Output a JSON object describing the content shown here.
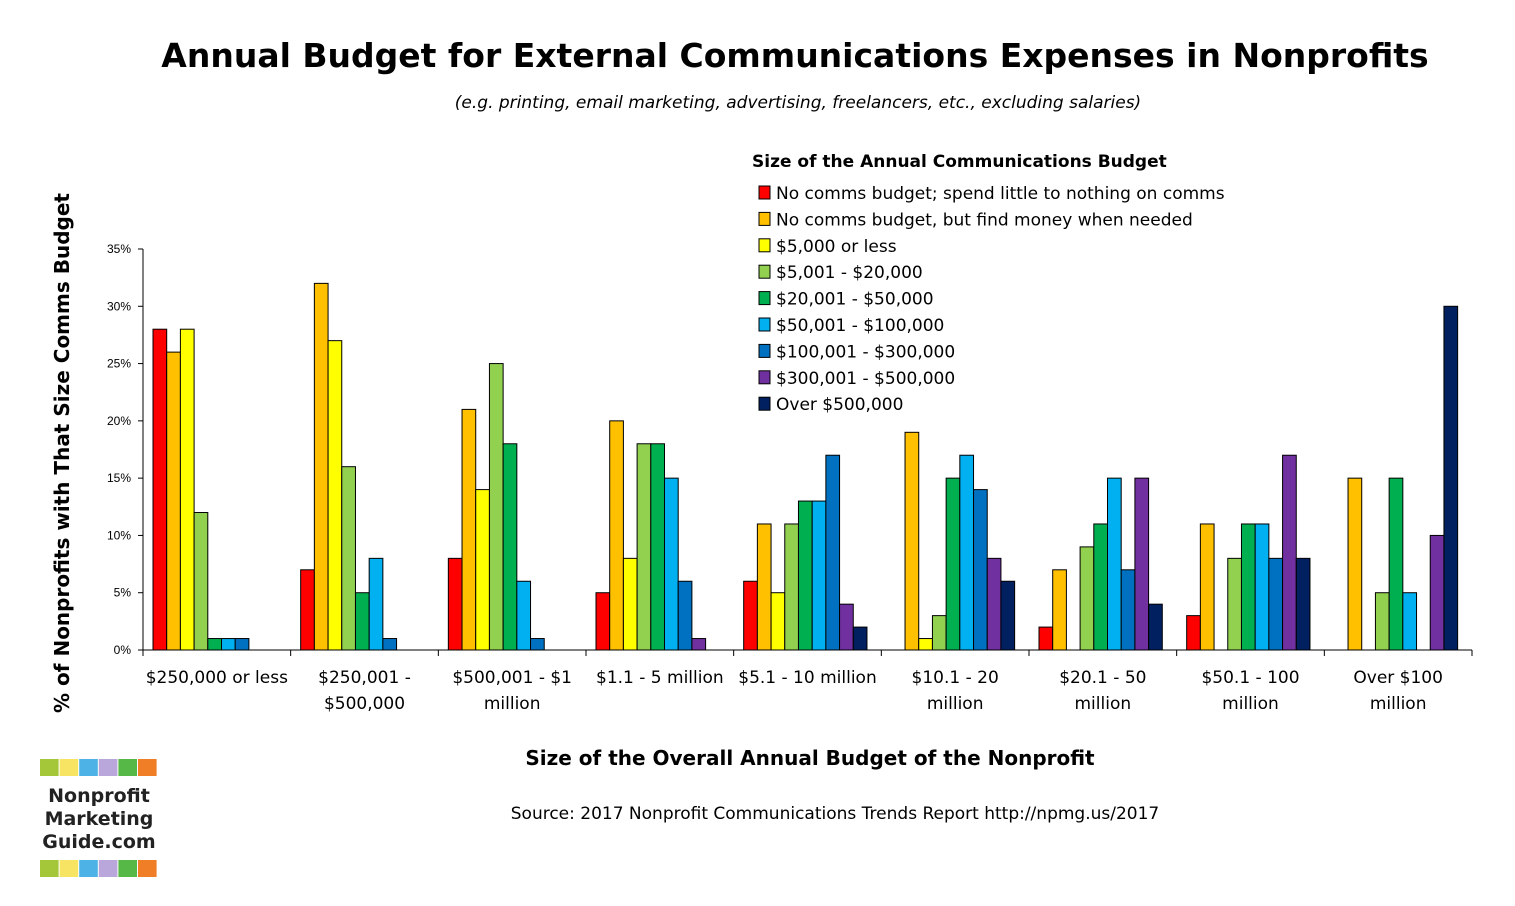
{
  "chart_data": {
    "type": "bar",
    "title": "Annual Budget for External Communications Expenses in Nonprofits",
    "subtitle": "(e.g. printing, email marketing, advertising, freelancers, etc., excluding salaries)",
    "xlabel": "Size of the Overall Annual Budget of the Nonprofit",
    "ylabel": "% of Nonprofits with That Size Comms Budget",
    "ylim": [
      0,
      35
    ],
    "y_ticks": [
      "0%",
      "5%",
      "10%",
      "15%",
      "20%",
      "25%",
      "30%",
      "35%"
    ],
    "grid": false,
    "legend_title": "Size of the Annual Communications Budget",
    "legend_position": "top-right",
    "categories": [
      [
        "$250,000 or less"
      ],
      [
        "$250,001 -",
        "$500,000"
      ],
      [
        "$500,001 - $1",
        "million"
      ],
      [
        "$1.1 - 5 million"
      ],
      [
        "$5.1 - 10 million"
      ],
      [
        "$10.1 - 20",
        "million"
      ],
      [
        "$20.1 - 50",
        "million"
      ],
      [
        "$50.1 - 100",
        "million"
      ],
      [
        "Over $100",
        "million"
      ]
    ],
    "series": [
      {
        "name": "No comms budget; spend little to nothing on comms",
        "color": "#FF0000",
        "values": [
          28,
          7,
          8,
          5,
          6,
          0,
          2,
          3,
          0
        ]
      },
      {
        "name": "No comms budget, but find money when needed",
        "color": "#FFC000",
        "values": [
          26,
          32,
          21,
          20,
          11,
          19,
          7,
          11,
          15
        ]
      },
      {
        "name": "$5,000 or less",
        "color": "#FFFF00",
        "values": [
          28,
          27,
          14,
          8,
          5,
          1,
          0,
          0,
          0
        ]
      },
      {
        "name": "$5,001 - $20,000",
        "color": "#92D050",
        "values": [
          12,
          16,
          25,
          18,
          11,
          3,
          9,
          8,
          5
        ]
      },
      {
        "name": "$20,001 - $50,000",
        "color": "#00B050",
        "values": [
          1,
          5,
          18,
          18,
          13,
          15,
          11,
          11,
          15
        ]
      },
      {
        "name": "$50,001 - $100,000",
        "color": "#00B0F0",
        "values": [
          1,
          8,
          6,
          15,
          13,
          17,
          15,
          11,
          5
        ]
      },
      {
        "name": "$100,001 - $300,000",
        "color": "#0070C0",
        "values": [
          1,
          1,
          1,
          6,
          17,
          14,
          7,
          8,
          0
        ]
      },
      {
        "name": "$300,001 - $500,000",
        "color": "#7030A0",
        "values": [
          0,
          0,
          0,
          1,
          4,
          8,
          15,
          17,
          10
        ]
      },
      {
        "name": "Over $500,000",
        "color": "#002060",
        "values": [
          0,
          0,
          0,
          0,
          2,
          6,
          4,
          8,
          30
        ]
      }
    ]
  },
  "source": "Source: 2017 Nonprofit Communications Trends Report  http://npmg.us/2017",
  "logo": {
    "lines": [
      "Nonprofit",
      "Marketing",
      "Guide.com"
    ],
    "colors": [
      "#A4C639",
      "#F7E463",
      "#4DB3E6",
      "#B9A6DB",
      "#56B947",
      "#F07E26"
    ]
  }
}
